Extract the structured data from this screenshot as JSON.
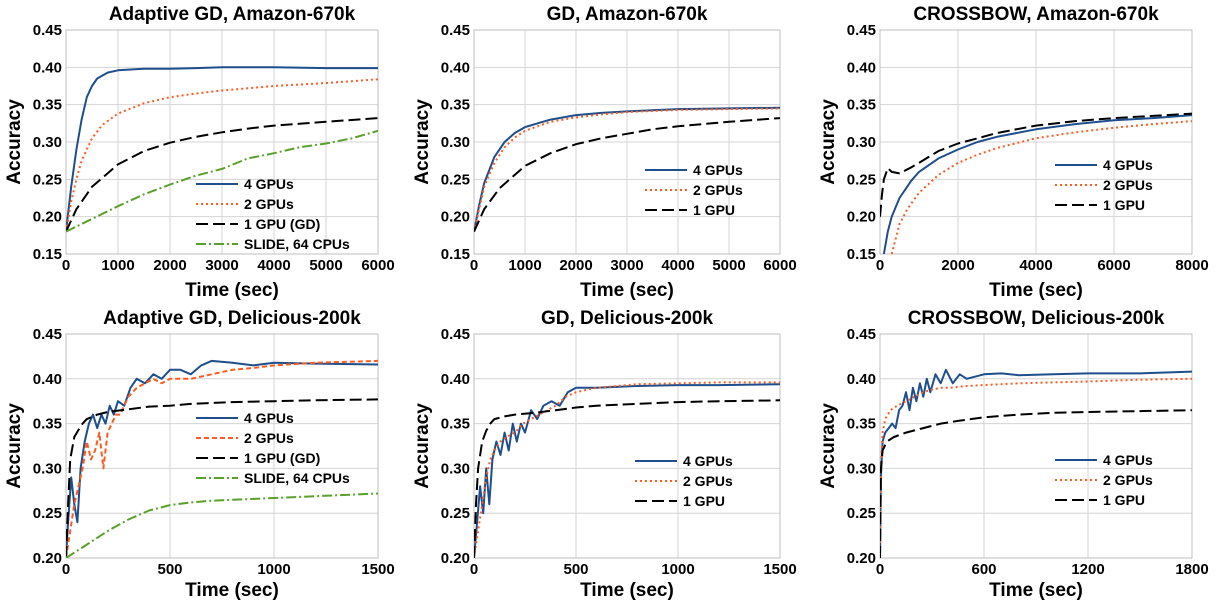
{
  "styles": {
    "4 GPUs": {
      "color": "#1f4e8c",
      "dash": "",
      "width": 2
    },
    "2 GPUs": {
      "color": "#ff5a1f",
      "dash": "2,3",
      "width": 2
    },
    "2 GPUs dashed": {
      "color": "#ff5a1f",
      "dash": "5,3",
      "width": 2
    },
    "1 GPU": {
      "color": "#000000",
      "dash": "12,5",
      "width": 2
    },
    "SLIDE": {
      "color": "#5aa02c",
      "dash": "10,3,2,3",
      "width": 2
    }
  },
  "chart_data": [
    {
      "type": "line",
      "title": "Adaptive GD, Amazon-670k",
      "xlabel": "Time (sec)",
      "ylabel": "Accuracy",
      "xlim": [
        0,
        6000
      ],
      "ylim": [
        0.15,
        0.45
      ],
      "xticks": [
        "0",
        "1000",
        "2000",
        "3000",
        "4000",
        "5000",
        "6000"
      ],
      "yticks": [
        "0.15",
        "0.20",
        "0.25",
        "0.30",
        "0.35",
        "0.40",
        "0.45"
      ],
      "grid": true,
      "legend_position": "bottom-right",
      "series": [
        {
          "name": "4 GPUs",
          "style": "4 GPUs",
          "x": [
            0,
            100,
            200,
            300,
            400,
            500,
            600,
            800,
            1000,
            1200,
            1500,
            2000,
            2500,
            3000,
            4000,
            5000,
            6000
          ],
          "y": [
            0.18,
            0.24,
            0.29,
            0.33,
            0.36,
            0.375,
            0.385,
            0.393,
            0.396,
            0.397,
            0.398,
            0.398,
            0.399,
            0.4,
            0.4,
            0.399,
            0.399
          ]
        },
        {
          "name": "2 GPUs",
          "style": "2 GPUs",
          "x": [
            0,
            100,
            200,
            300,
            500,
            700,
            1000,
            1500,
            2000,
            2500,
            3000,
            4000,
            5000,
            6000
          ],
          "y": [
            0.18,
            0.22,
            0.25,
            0.275,
            0.305,
            0.323,
            0.338,
            0.352,
            0.36,
            0.365,
            0.369,
            0.375,
            0.379,
            0.384
          ]
        },
        {
          "name": "1 GPU (GD)",
          "style": "1 GPU",
          "x": [
            0,
            200,
            500,
            1000,
            1500,
            2000,
            2500,
            3000,
            3500,
            4000,
            5000,
            6000
          ],
          "y": [
            0.18,
            0.21,
            0.24,
            0.27,
            0.288,
            0.299,
            0.307,
            0.313,
            0.318,
            0.322,
            0.327,
            0.332
          ]
        },
        {
          "name": "SLIDE, 64 CPUs",
          "style": "SLIDE",
          "x": [
            0,
            500,
            1000,
            1500,
            2000,
            2500,
            3000,
            3500,
            4000,
            4500,
            5000,
            5500,
            6000
          ],
          "y": [
            0.18,
            0.197,
            0.214,
            0.23,
            0.243,
            0.255,
            0.264,
            0.278,
            0.285,
            0.293,
            0.298,
            0.305,
            0.315
          ]
        }
      ]
    },
    {
      "type": "line",
      "title": "GD, Amazon-670k",
      "xlabel": "Time (sec)",
      "ylabel": "Accuracy",
      "xlim": [
        0,
        6000
      ],
      "ylim": [
        0.15,
        0.45
      ],
      "xticks": [
        "0",
        "1000",
        "2000",
        "3000",
        "4000",
        "5000",
        "6000"
      ],
      "yticks": [
        "0.15",
        "0.20",
        "0.25",
        "0.30",
        "0.35",
        "0.40",
        "0.45"
      ],
      "grid": true,
      "legend_position": "bottom-right",
      "series": [
        {
          "name": "4 GPUs",
          "style": "4 GPUs",
          "x": [
            0,
            100,
            200,
            400,
            600,
            800,
            1000,
            1500,
            2000,
            2500,
            3000,
            4000,
            5000,
            6000
          ],
          "y": [
            0.18,
            0.215,
            0.245,
            0.28,
            0.3,
            0.312,
            0.32,
            0.33,
            0.336,
            0.339,
            0.341,
            0.344,
            0.345,
            0.346
          ]
        },
        {
          "name": "2 GPUs",
          "style": "2 GPUs",
          "x": [
            0,
            100,
            200,
            400,
            600,
            800,
            1000,
            1500,
            2000,
            2500,
            3000,
            4000,
            5000,
            6000
          ],
          "y": [
            0.18,
            0.21,
            0.24,
            0.272,
            0.293,
            0.306,
            0.315,
            0.327,
            0.333,
            0.337,
            0.34,
            0.343,
            0.344,
            0.345
          ]
        },
        {
          "name": "1 GPU",
          "style": "1 GPU",
          "x": [
            0,
            200,
            500,
            1000,
            1500,
            2000,
            2500,
            3000,
            3500,
            4000,
            5000,
            6000
          ],
          "y": [
            0.18,
            0.21,
            0.238,
            0.268,
            0.285,
            0.297,
            0.305,
            0.311,
            0.317,
            0.321,
            0.327,
            0.332
          ]
        }
      ]
    },
    {
      "type": "line",
      "title": "CROSSBOW, Amazon-670k",
      "xlabel": "Time (sec)",
      "ylabel": "Accuracy",
      "xlim": [
        0,
        8000
      ],
      "ylim": [
        0.15,
        0.45
      ],
      "xticks": [
        "0",
        "2000",
        "4000",
        "6000",
        "8000"
      ],
      "yticks": [
        "0.15",
        "0.20",
        "0.25",
        "0.30",
        "0.35",
        "0.40",
        "0.45"
      ],
      "grid": true,
      "legend_position": "right",
      "series": [
        {
          "name": "4 GPUs",
          "style": "4 GPUs",
          "x": [
            100,
            200,
            300,
            500,
            800,
            1000,
            1500,
            2000,
            2500,
            3000,
            4000,
            5000,
            6000,
            7000,
            8000
          ],
          "y": [
            0.15,
            0.18,
            0.2,
            0.225,
            0.248,
            0.26,
            0.278,
            0.29,
            0.3,
            0.307,
            0.317,
            0.324,
            0.329,
            0.332,
            0.336
          ]
        },
        {
          "name": "2 GPUs",
          "style": "2 GPUs",
          "x": [
            300,
            400,
            500,
            700,
            1000,
            1500,
            2000,
            2500,
            3000,
            4000,
            5000,
            6000,
            7000,
            8000
          ],
          "y": [
            0.15,
            0.17,
            0.19,
            0.21,
            0.232,
            0.256,
            0.272,
            0.283,
            0.292,
            0.305,
            0.313,
            0.319,
            0.324,
            0.328
          ]
        },
        {
          "name": "1 GPU",
          "style": "1 GPU",
          "x": [
            0,
            50,
            100,
            200,
            300,
            500,
            800,
            1000,
            1500,
            2000,
            2500,
            3000,
            4000,
            5000,
            6000,
            7000,
            8000
          ],
          "y": [
            0.2,
            0.23,
            0.25,
            0.265,
            0.26,
            0.258,
            0.266,
            0.272,
            0.288,
            0.298,
            0.305,
            0.312,
            0.322,
            0.328,
            0.332,
            0.335,
            0.338
          ]
        }
      ]
    },
    {
      "type": "line",
      "title": "Adaptive GD, Delicious-200k",
      "xlabel": "Time (sec)",
      "ylabel": "Accuracy",
      "xlim": [
        0,
        1500
      ],
      "ylim": [
        0.2,
        0.45
      ],
      "xticks": [
        "0",
        "500",
        "1000",
        "1500"
      ],
      "yticks": [
        "0.20",
        "0.25",
        "0.30",
        "0.35",
        "0.40",
        "0.45"
      ],
      "grid": true,
      "legend_position": "center-right",
      "series": [
        {
          "name": "4 GPUs",
          "style": "4 GPUs",
          "x": [
            0,
            10,
            25,
            40,
            55,
            70,
            90,
            110,
            130,
            150,
            170,
            190,
            210,
            230,
            250,
            280,
            310,
            340,
            380,
            420,
            460,
            500,
            550,
            600,
            650,
            700,
            800,
            900,
            1000,
            1200,
            1500
          ],
          "y": [
            0.2,
            0.24,
            0.29,
            0.26,
            0.24,
            0.3,
            0.33,
            0.35,
            0.36,
            0.345,
            0.36,
            0.35,
            0.37,
            0.36,
            0.375,
            0.37,
            0.39,
            0.4,
            0.395,
            0.405,
            0.4,
            0.41,
            0.41,
            0.405,
            0.415,
            0.42,
            0.418,
            0.415,
            0.418,
            0.417,
            0.416
          ]
        },
        {
          "name": "2 GPUs",
          "style": "2 GPUs dashed",
          "x": [
            0,
            20,
            40,
            60,
            80,
            100,
            120,
            140,
            160,
            180,
            200,
            220,
            240,
            260,
            280,
            300,
            340,
            380,
            420,
            460,
            500,
            600,
            700,
            800,
            900,
            1000,
            1200,
            1500
          ],
          "y": [
            0.2,
            0.23,
            0.26,
            0.28,
            0.3,
            0.33,
            0.31,
            0.32,
            0.34,
            0.3,
            0.34,
            0.35,
            0.36,
            0.36,
            0.37,
            0.38,
            0.39,
            0.395,
            0.4,
            0.395,
            0.4,
            0.4,
            0.405,
            0.41,
            0.412,
            0.415,
            0.418,
            0.42
          ]
        },
        {
          "name": "1 GPU (GD)",
          "style": "1 GPU",
          "x": [
            0,
            10,
            20,
            40,
            60,
            80,
            100,
            150,
            200,
            300,
            400,
            500,
            600,
            800,
            1000,
            1200,
            1500
          ],
          "y": [
            0.2,
            0.26,
            0.31,
            0.335,
            0.343,
            0.35,
            0.355,
            0.36,
            0.363,
            0.366,
            0.369,
            0.37,
            0.372,
            0.374,
            0.375,
            0.376,
            0.377
          ]
        },
        {
          "name": "SLIDE, 64 CPUs",
          "style": "SLIDE",
          "x": [
            0,
            100,
            200,
            300,
            400,
            500,
            600,
            700,
            800,
            900,
            1000,
            1100,
            1200,
            1300,
            1400,
            1500
          ],
          "y": [
            0.2,
            0.215,
            0.23,
            0.243,
            0.253,
            0.259,
            0.262,
            0.264,
            0.265,
            0.266,
            0.267,
            0.268,
            0.269,
            0.27,
            0.271,
            0.272
          ]
        }
      ]
    },
    {
      "type": "line",
      "title": "GD, Delicious-200k",
      "xlabel": "Time (sec)",
      "ylabel": "Accuracy",
      "xlim": [
        0,
        1500
      ],
      "ylim": [
        0.2,
        0.45
      ],
      "xticks": [
        "0",
        "500",
        "1000",
        "1500"
      ],
      "yticks": [
        "0.20",
        "0.25",
        "0.30",
        "0.35",
        "0.40",
        "0.45"
      ],
      "grid": true,
      "legend_position": "center-right",
      "series": [
        {
          "name": "4 GPUs",
          "style": "4 GPUs",
          "x": [
            0,
            15,
            30,
            45,
            60,
            75,
            90,
            110,
            130,
            150,
            170,
            190,
            210,
            230,
            250,
            280,
            310,
            340,
            380,
            420,
            460,
            500,
            600,
            700,
            800,
            1000,
            1200,
            1500
          ],
          "y": [
            0.2,
            0.24,
            0.28,
            0.25,
            0.3,
            0.26,
            0.31,
            0.33,
            0.315,
            0.34,
            0.32,
            0.35,
            0.33,
            0.35,
            0.34,
            0.365,
            0.355,
            0.37,
            0.375,
            0.37,
            0.385,
            0.39,
            0.39,
            0.391,
            0.392,
            0.393,
            0.393,
            0.394
          ]
        },
        {
          "name": "2 GPUs",
          "style": "2 GPUs",
          "x": [
            0,
            20,
            40,
            60,
            80,
            100,
            130,
            160,
            200,
            240,
            280,
            320,
            360,
            400,
            450,
            500,
            600,
            700,
            800,
            1000,
            1200,
            1500
          ],
          "y": [
            0.2,
            0.23,
            0.26,
            0.29,
            0.31,
            0.32,
            0.33,
            0.335,
            0.34,
            0.35,
            0.355,
            0.36,
            0.365,
            0.37,
            0.38,
            0.385,
            0.39,
            0.392,
            0.394,
            0.395,
            0.396,
            0.396
          ]
        },
        {
          "name": "1 GPU",
          "style": "1 GPU",
          "x": [
            0,
            10,
            20,
            40,
            60,
            80,
            100,
            150,
            200,
            300,
            400,
            500,
            600,
            800,
            1000,
            1200,
            1500
          ],
          "y": [
            0.2,
            0.26,
            0.3,
            0.33,
            0.342,
            0.35,
            0.355,
            0.358,
            0.36,
            0.362,
            0.365,
            0.368,
            0.37,
            0.372,
            0.374,
            0.375,
            0.376
          ]
        }
      ]
    },
    {
      "type": "line",
      "title": "CROSSBOW, Delicious-200k",
      "xlabel": "Time (sec)",
      "ylabel": "Accuracy",
      "xlim": [
        0,
        1800
      ],
      "ylim": [
        0.2,
        0.45
      ],
      "xticks": [
        "0",
        "600",
        "1200",
        "1800"
      ],
      "yticks": [
        "0.20",
        "0.25",
        "0.30",
        "0.35",
        "0.40",
        "0.45"
      ],
      "grid": true,
      "legend_position": "center-right",
      "series": [
        {
          "name": "4 GPUs",
          "style": "4 GPUs",
          "x": [
            0,
            5,
            15,
            30,
            50,
            70,
            90,
            110,
            130,
            150,
            170,
            190,
            210,
            230,
            250,
            270,
            290,
            320,
            350,
            380,
            420,
            460,
            500,
            600,
            700,
            800,
            1000,
            1200,
            1500,
            1800
          ],
          "y": [
            0.2,
            0.29,
            0.33,
            0.34,
            0.345,
            0.35,
            0.345,
            0.365,
            0.37,
            0.385,
            0.365,
            0.39,
            0.375,
            0.395,
            0.38,
            0.4,
            0.385,
            0.405,
            0.395,
            0.41,
            0.395,
            0.405,
            0.4,
            0.405,
            0.406,
            0.404,
            0.405,
            0.406,
            0.406,
            0.408
          ]
        },
        {
          "name": "2 GPUs",
          "style": "2 GPUs",
          "x": [
            0,
            5,
            15,
            30,
            60,
            100,
            150,
            200,
            250,
            300,
            350,
            400,
            500,
            600,
            700,
            800,
            1000,
            1200,
            1500,
            1800
          ],
          "y": [
            0.2,
            0.3,
            0.34,
            0.355,
            0.365,
            0.37,
            0.375,
            0.38,
            0.385,
            0.388,
            0.39,
            0.39,
            0.392,
            0.393,
            0.394,
            0.395,
            0.396,
            0.397,
            0.399,
            0.4
          ]
        },
        {
          "name": "1 GPU",
          "style": "1 GPU",
          "x": [
            0,
            5,
            15,
            40,
            80,
            150,
            250,
            350,
            450,
            600,
            800,
            1000,
            1200,
            1500,
            1800
          ],
          "y": [
            0.2,
            0.3,
            0.32,
            0.33,
            0.335,
            0.34,
            0.345,
            0.35,
            0.353,
            0.357,
            0.36,
            0.362,
            0.363,
            0.364,
            0.365
          ]
        }
      ]
    }
  ]
}
